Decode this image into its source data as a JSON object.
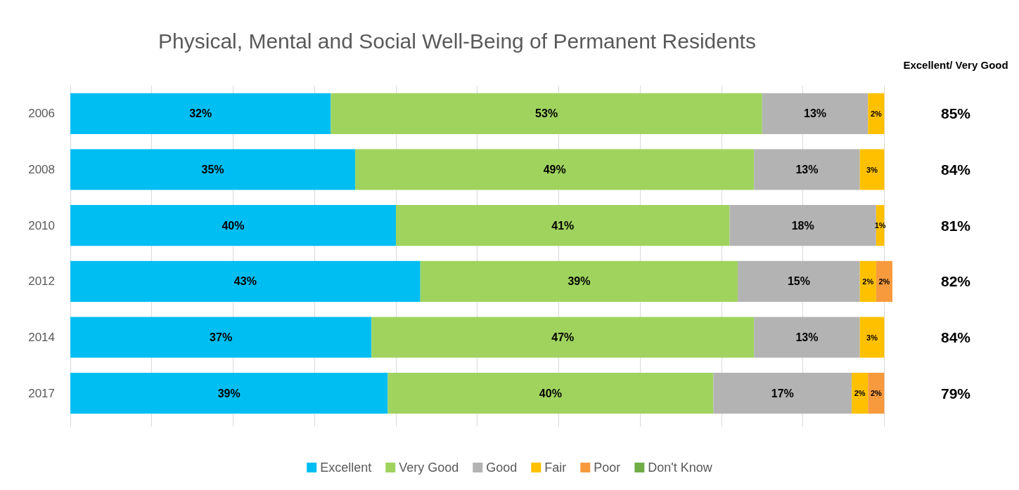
{
  "chart_data": {
    "type": "bar",
    "orientation": "horizontal",
    "stacked": true,
    "title": "Physical, Mental and Social Well-Being of Permanent Residents",
    "categories": [
      "2006",
      "2008",
      "2010",
      "2012",
      "2014",
      "2017"
    ],
    "series": [
      {
        "name": "Excellent",
        "color": "#00bdf2",
        "values": [
          32,
          35,
          40,
          43,
          37,
          39
        ],
        "value_labels": [
          "32%",
          "35%",
          "40%",
          "43%",
          "37%",
          "39%"
        ]
      },
      {
        "name": "Very Good",
        "color": "#9fd35e",
        "values": [
          53,
          49,
          41,
          39,
          47,
          40
        ],
        "value_labels": [
          "53%",
          "49%",
          "41%",
          "39%",
          "47%",
          "40%"
        ]
      },
      {
        "name": "Good",
        "color": "#b3b3b3",
        "values": [
          13,
          13,
          18,
          15,
          13,
          17
        ],
        "value_labels": [
          "13%",
          "13%",
          "18%",
          "15%",
          "13%",
          "17%"
        ]
      },
      {
        "name": "Fair",
        "color": "#ffc000",
        "values": [
          2,
          3,
          1,
          2,
          3,
          2
        ],
        "value_labels": [
          "2%",
          "3%",
          "1%",
          "2%",
          "3%",
          "2%"
        ]
      },
      {
        "name": "Poor",
        "color": "#f79a3e",
        "values": [
          null,
          null,
          null,
          2,
          null,
          2
        ],
        "value_labels": [
          null,
          null,
          null,
          "2%",
          null,
          "2%"
        ]
      },
      {
        "name": "Don't Know",
        "color": "#70ad47",
        "values": [
          null,
          null,
          null,
          null,
          null,
          null
        ],
        "value_labels": [
          null,
          null,
          null,
          null,
          null,
          null
        ]
      }
    ],
    "xlim": [
      0,
      101
    ],
    "xticks": [
      {
        "value": 0,
        "label": null
      },
      {
        "value": 10,
        "label": null
      },
      {
        "value": 20,
        "label": null
      },
      {
        "value": 30,
        "label": null
      },
      {
        "value": 40,
        "label": null
      },
      {
        "value": 50,
        "label": null
      },
      {
        "value": 60,
        "label": null
      },
      {
        "value": 70,
        "label": null
      },
      {
        "value": 80,
        "label": null
      },
      {
        "value": 90,
        "label": null
      },
      {
        "value": 100,
        "label": null
      }
    ],
    "tick_labels": "y",
    "grid": "x",
    "legend": "bottom",
    "annotations": [
      "Excellent/ Very Good",
      "85%",
      "84%",
      "81%",
      "82%",
      "84%",
      "79%"
    ]
  }
}
